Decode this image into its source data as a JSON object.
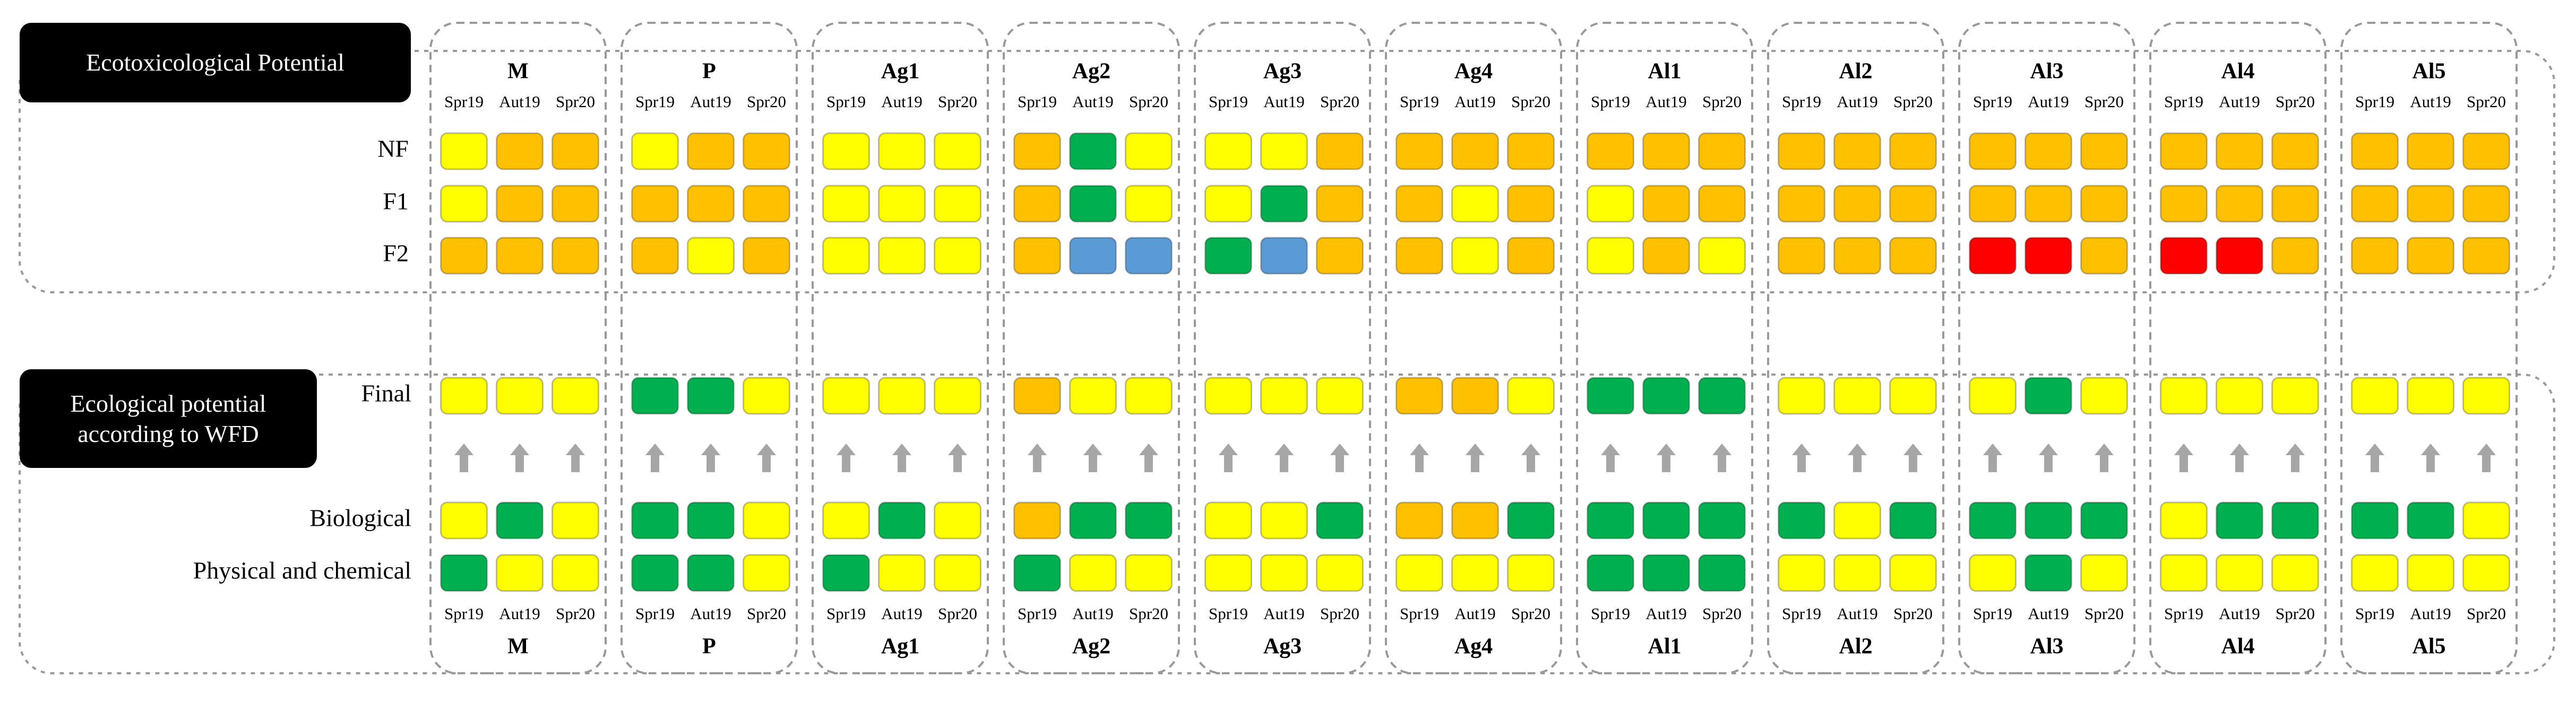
{
  "sections": [
    {
      "label": "Ecotoxicological Potential",
      "rows": [
        "NF",
        "F1",
        "F2"
      ]
    },
    {
      "label": "Ecological potential according to WFD",
      "rows": [
        "Final",
        "Biological",
        "Physical and chemical"
      ]
    }
  ],
  "seasons": [
    "Spr19",
    "Aut19",
    "Spr20"
  ],
  "palette": {
    "Y": "#ffff00",
    "O": "#ffc000",
    "G": "#00b050",
    "B": "#5b9bd5",
    "R": "#ff0000"
  },
  "sites": [
    {
      "name": "M",
      "eco": [
        [
          "Y",
          "O",
          "O"
        ],
        [
          "Y",
          "O",
          "O"
        ],
        [
          "O",
          "O",
          "O"
        ]
      ],
      "wfd": [
        [
          "Y",
          "Y",
          "Y"
        ],
        [
          "Y",
          "G",
          "Y"
        ],
        [
          "G",
          "Y",
          "Y"
        ]
      ]
    },
    {
      "name": "P",
      "eco": [
        [
          "Y",
          "O",
          "O"
        ],
        [
          "O",
          "O",
          "O"
        ],
        [
          "O",
          "Y",
          "O"
        ]
      ],
      "wfd": [
        [
          "G",
          "G",
          "Y"
        ],
        [
          "G",
          "G",
          "Y"
        ],
        [
          "G",
          "G",
          "Y"
        ]
      ]
    },
    {
      "name": "Ag1",
      "eco": [
        [
          "Y",
          "Y",
          "Y"
        ],
        [
          "Y",
          "Y",
          "Y"
        ],
        [
          "Y",
          "Y",
          "Y"
        ]
      ],
      "wfd": [
        [
          "Y",
          "Y",
          "Y"
        ],
        [
          "Y",
          "G",
          "Y"
        ],
        [
          "G",
          "Y",
          "Y"
        ]
      ]
    },
    {
      "name": "Ag2",
      "eco": [
        [
          "O",
          "G",
          "Y"
        ],
        [
          "O",
          "G",
          "Y"
        ],
        [
          "O",
          "B",
          "B"
        ]
      ],
      "wfd": [
        [
          "O",
          "Y",
          "Y"
        ],
        [
          "O",
          "G",
          "G"
        ],
        [
          "G",
          "Y",
          "Y"
        ]
      ]
    },
    {
      "name": "Ag3",
      "eco": [
        [
          "Y",
          "Y",
          "O"
        ],
        [
          "Y",
          "G",
          "O"
        ],
        [
          "G",
          "B",
          "O"
        ]
      ],
      "wfd": [
        [
          "Y",
          "Y",
          "Y"
        ],
        [
          "Y",
          "Y",
          "G"
        ],
        [
          "Y",
          "Y",
          "Y"
        ]
      ]
    },
    {
      "name": "Ag4",
      "eco": [
        [
          "O",
          "O",
          "O"
        ],
        [
          "O",
          "Y",
          "O"
        ],
        [
          "O",
          "Y",
          "O"
        ]
      ],
      "wfd": [
        [
          "O",
          "O",
          "Y"
        ],
        [
          "O",
          "O",
          "G"
        ],
        [
          "Y",
          "Y",
          "Y"
        ]
      ]
    },
    {
      "name": "Al1",
      "eco": [
        [
          "O",
          "O",
          "O"
        ],
        [
          "Y",
          "O",
          "O"
        ],
        [
          "Y",
          "O",
          "Y"
        ]
      ],
      "wfd": [
        [
          "G",
          "G",
          "G"
        ],
        [
          "G",
          "G",
          "G"
        ],
        [
          "G",
          "G",
          "G"
        ]
      ]
    },
    {
      "name": "Al2",
      "eco": [
        [
          "O",
          "O",
          "O"
        ],
        [
          "O",
          "O",
          "O"
        ],
        [
          "O",
          "O",
          "O"
        ]
      ],
      "wfd": [
        [
          "Y",
          "Y",
          "Y"
        ],
        [
          "G",
          "Y",
          "G"
        ],
        [
          "Y",
          "Y",
          "Y"
        ]
      ]
    },
    {
      "name": "Al3",
      "eco": [
        [
          "O",
          "O",
          "O"
        ],
        [
          "O",
          "O",
          "O"
        ],
        [
          "R",
          "R",
          "O"
        ]
      ],
      "wfd": [
        [
          "Y",
          "G",
          "Y"
        ],
        [
          "G",
          "G",
          "G"
        ],
        [
          "Y",
          "G",
          "Y"
        ]
      ]
    },
    {
      "name": "Al4",
      "eco": [
        [
          "O",
          "O",
          "O"
        ],
        [
          "O",
          "O",
          "O"
        ],
        [
          "R",
          "R",
          "O"
        ]
      ],
      "wfd": [
        [
          "Y",
          "Y",
          "Y"
        ],
        [
          "Y",
          "G",
          "G"
        ],
        [
          "Y",
          "Y",
          "Y"
        ]
      ]
    },
    {
      "name": "Al5",
      "eco": [
        [
          "O",
          "O",
          "O"
        ],
        [
          "O",
          "O",
          "O"
        ],
        [
          "O",
          "O",
          "O"
        ]
      ],
      "wfd": [
        [
          "Y",
          "Y",
          "Y"
        ],
        [
          "G",
          "G",
          "Y"
        ],
        [
          "Y",
          "Y",
          "Y"
        ]
      ]
    }
  ]
}
